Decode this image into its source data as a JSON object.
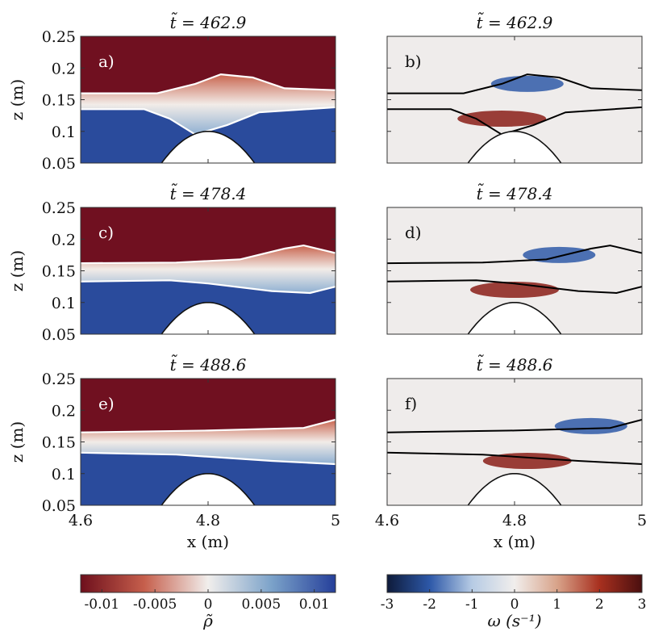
{
  "chart_data": {
    "type": "heatmap",
    "xlim": [
      4.6,
      5
    ],
    "ylim": [
      0.05,
      0.25
    ],
    "xticks": [
      "4.6",
      "4.8",
      "5"
    ],
    "yticks": [
      "0.25",
      "0.2",
      "0.15",
      "0.1",
      "0.05"
    ],
    "xlabel": "x (m)",
    "ylabel": "z (m)",
    "panels": [
      {
        "label": "a)",
        "title": "t̃ = 462.9",
        "field": "density",
        "col": 0,
        "row": 0
      },
      {
        "label": "b)",
        "title": "t̃ = 462.9",
        "field": "vorticity",
        "col": 1,
        "row": 0
      },
      {
        "label": "c)",
        "title": "t̃ = 478.4",
        "field": "density",
        "col": 0,
        "row": 1
      },
      {
        "label": "d)",
        "title": "t̃ = 478.4",
        "field": "vorticity",
        "col": 1,
        "row": 1
      },
      {
        "label": "e)",
        "title": "t̃ = 488.6",
        "field": "density",
        "col": 0,
        "row": 2
      },
      {
        "label": "f)",
        "title": "t̃ = 488.6",
        "field": "vorticity",
        "col": 1,
        "row": 2
      }
    ],
    "interfaces": [
      {
        "upper": [
          [
            4.6,
            0.16
          ],
          [
            4.72,
            0.16
          ],
          [
            4.78,
            0.175
          ],
          [
            4.82,
            0.19
          ],
          [
            4.87,
            0.185
          ],
          [
            4.92,
            0.168
          ],
          [
            5.0,
            0.165
          ]
        ],
        "lower": [
          [
            4.6,
            0.135
          ],
          [
            4.7,
            0.135
          ],
          [
            4.74,
            0.12
          ],
          [
            4.78,
            0.095
          ],
          [
            4.83,
            0.11
          ],
          [
            4.88,
            0.13
          ],
          [
            5.0,
            0.138
          ]
        ]
      },
      {
        "upper": [
          [
            4.6,
            0.162
          ],
          [
            4.75,
            0.163
          ],
          [
            4.85,
            0.168
          ],
          [
            4.92,
            0.185
          ],
          [
            4.95,
            0.19
          ],
          [
            5.0,
            0.178
          ]
        ],
        "lower": [
          [
            4.6,
            0.133
          ],
          [
            4.74,
            0.135
          ],
          [
            4.8,
            0.13
          ],
          [
            4.9,
            0.118
          ],
          [
            4.96,
            0.115
          ],
          [
            5.0,
            0.125
          ]
        ]
      },
      {
        "upper": [
          [
            4.6,
            0.165
          ],
          [
            4.8,
            0.168
          ],
          [
            4.95,
            0.172
          ],
          [
            5.0,
            0.185
          ]
        ],
        "lower": [
          [
            4.6,
            0.133
          ],
          [
            4.75,
            0.13
          ],
          [
            4.9,
            0.12
          ],
          [
            5.0,
            0.115
          ]
        ]
      }
    ],
    "topography": {
      "peak_x": 4.8,
      "peak_z": 0.1,
      "half_width": 0.08
    },
    "colorbars": [
      {
        "label": "ρ̃",
        "min": -0.012,
        "max": 0.012,
        "ticks": [
          -0.01,
          -0.005,
          0,
          0.005,
          0.01
        ],
        "tick_labels": [
          "-0.01",
          "-0.005",
          "0",
          "0.005",
          "0.01"
        ],
        "colors": [
          "#6e0f1c",
          "#c65f4c",
          "#f1eeec",
          "#7ba2c9",
          "#253f9a"
        ]
      },
      {
        "label": "ω (s⁻¹)",
        "min": -3,
        "max": 3,
        "ticks": [
          -3,
          -2,
          -1,
          0,
          1,
          2,
          3
        ],
        "tick_labels": [
          "-3",
          "-2",
          "-1",
          "0",
          "1",
          "2",
          "3"
        ],
        "colors": [
          "#0e1b3a",
          "#2d58a8",
          "#b6cbe4",
          "#f1eeec",
          "#d8a38a",
          "#a8301f",
          "#4a0f0f"
        ]
      }
    ]
  }
}
